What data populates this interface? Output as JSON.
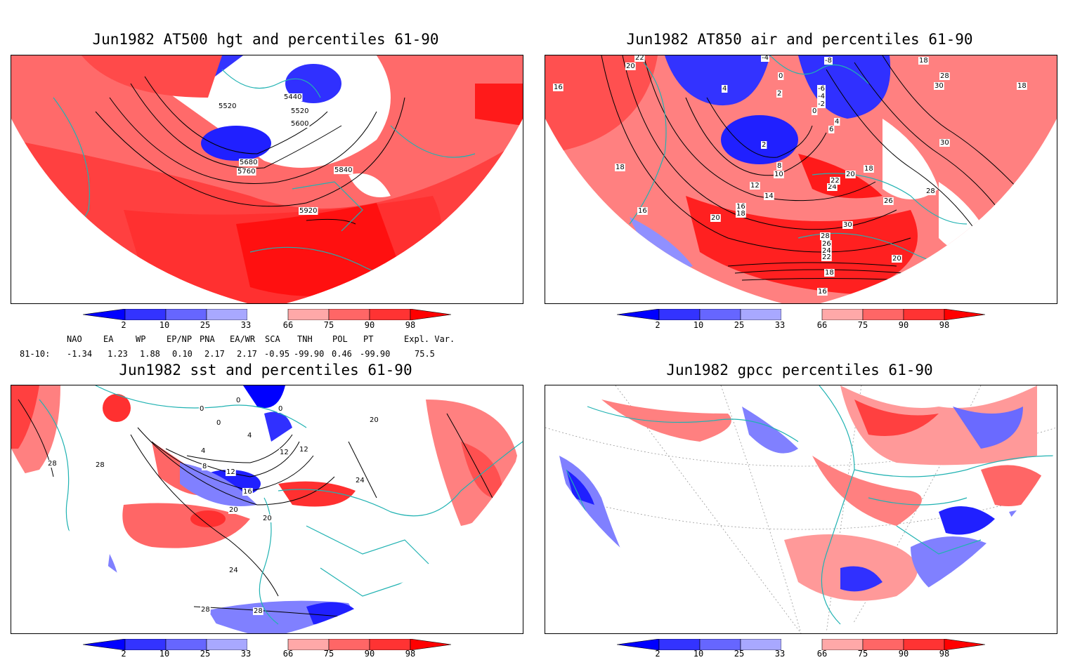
{
  "panels": [
    {
      "title": "Jun1982 AT500 hgt and percentiles 61-90",
      "contour_labels": [
        "5440",
        "5520",
        "5520",
        "5600",
        "5680",
        "5760",
        "5840",
        "5920"
      ]
    },
    {
      "title": "Jun1982 AT850 air and percentiles 61-90",
      "contour_labels": [
        "22",
        "20",
        "16",
        "-4",
        "-8",
        "18",
        "28",
        "30",
        "18",
        "4",
        "0",
        "2",
        "-6",
        "-4",
        "-2",
        "0",
        "4",
        "6",
        "2",
        "8",
        "10",
        "18",
        "20",
        "12",
        "14",
        "24",
        "22",
        "18",
        "30",
        "16",
        "16",
        "18",
        "20",
        "26",
        "28",
        "30",
        "28",
        "26",
        "24",
        "22",
        "20",
        "18",
        "16"
      ]
    },
    {
      "title": "Jun1982 sst and percentiles 61-90",
      "contour_labels": [
        "28",
        "28",
        "0",
        "0",
        "0",
        "0",
        "4",
        "4",
        "8",
        "12",
        "12",
        "12",
        "16",
        "20",
        "20",
        "24",
        "20",
        "24",
        "28",
        "28"
      ]
    },
    {
      "title": "Jun1982 gpcc percentiles 61-90",
      "contour_labels": []
    }
  ],
  "colorbar": {
    "labels": [
      "2",
      "10",
      "25",
      "33",
      "66",
      "75",
      "90",
      "98"
    ],
    "colors": [
      "#0000ff",
      "#3333ff",
      "#6666ff",
      "#a8a8ff",
      "#ffffff",
      "#ffa8a8",
      "#ff6666",
      "#ff3333",
      "#ff0000"
    ]
  },
  "teleconnections": {
    "header": [
      "NAO",
      "EA",
      "WP",
      "EP/NP",
      "PNA",
      "EA/WR",
      "SCA",
      "TNH",
      "POL",
      "PT",
      "Expl. Var."
    ],
    "row_label": "81-10:",
    "values": [
      "-1.34",
      "1.23",
      "1.88",
      "0.10",
      "2.17",
      "2.17",
      "-0.95",
      "-99.90",
      "0.46",
      "-99.90",
      "75.5"
    ]
  },
  "colors": {
    "coast": "#20b2b2",
    "red": "#ff3333",
    "lightred": "#ff8080",
    "blue": "#2222ff",
    "lightblue": "#a8a8ff"
  }
}
